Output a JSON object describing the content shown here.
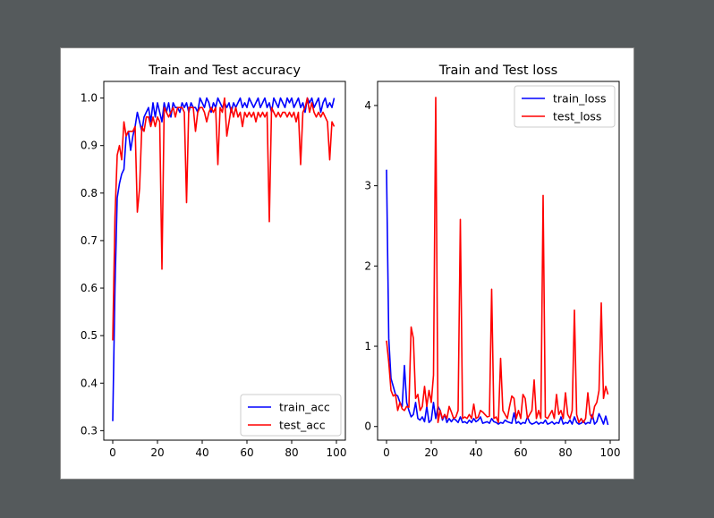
{
  "chart_data": [
    {
      "type": "line",
      "title": "Train and Test accuracy",
      "xlabel": "",
      "ylabel": "",
      "xlim": [
        -4,
        104
      ],
      "ylim": [
        0.28,
        1.035
      ],
      "xticks": [
        0,
        20,
        40,
        60,
        80,
        100
      ],
      "yticks": [
        0.3,
        0.4,
        0.5,
        0.6,
        0.7,
        0.8,
        0.9,
        1.0
      ],
      "ytick_labels": [
        "0.3",
        "0.4",
        "0.5",
        "0.6",
        "0.7",
        "0.8",
        "0.9",
        "1.0"
      ],
      "grid": false,
      "legend": "lower-right",
      "series": [
        {
          "name": "train_acc",
          "color": "#0000ff",
          "values": [
            0.32,
            0.6,
            0.79,
            0.82,
            0.84,
            0.85,
            0.92,
            0.93,
            0.89,
            0.92,
            0.94,
            0.97,
            0.95,
            0.93,
            0.96,
            0.97,
            0.98,
            0.95,
            0.99,
            0.96,
            0.99,
            0.97,
            0.95,
            0.99,
            0.97,
            0.99,
            0.96,
            0.99,
            0.98,
            0.98,
            0.97,
            0.99,
            0.98,
            0.99,
            0.97,
            0.99,
            0.98,
            0.98,
            0.97,
            1.0,
            0.99,
            0.98,
            1.0,
            0.99,
            0.97,
            0.99,
            0.98,
            1.0,
            0.99,
            0.98,
            0.99,
            0.98,
            0.99,
            0.97,
            0.99,
            0.98,
            0.99,
            1.0,
            0.98,
            0.99,
            0.98,
            1.0,
            0.99,
            0.98,
            0.99,
            1.0,
            0.98,
            0.99,
            1.0,
            0.98,
            0.99,
            0.97,
            1.0,
            0.99,
            0.98,
            1.0,
            0.99,
            0.98,
            1.0,
            0.99,
            1.0,
            0.98,
            0.99,
            1.0,
            0.98,
            0.99,
            0.97,
            1.0,
            0.99,
            1.0,
            0.98,
            0.99,
            1.0,
            0.97,
            0.99,
            1.0,
            0.98,
            0.99,
            0.98,
            1.0
          ]
        },
        {
          "name": "test_acc",
          "color": "#ff0000",
          "values": [
            0.49,
            0.75,
            0.88,
            0.9,
            0.87,
            0.95,
            0.92,
            0.93,
            0.93,
            0.93,
            0.94,
            0.76,
            0.81,
            0.94,
            0.93,
            0.96,
            0.96,
            0.94,
            0.96,
            0.94,
            0.96,
            0.95,
            0.64,
            0.98,
            0.97,
            0.96,
            0.97,
            0.98,
            0.96,
            0.98,
            0.98,
            0.98,
            0.97,
            0.78,
            0.98,
            0.98,
            0.98,
            0.93,
            0.97,
            0.98,
            0.98,
            0.97,
            0.95,
            0.97,
            0.98,
            0.97,
            0.98,
            0.86,
            0.98,
            0.97,
            1.0,
            0.92,
            0.95,
            0.98,
            0.96,
            0.98,
            0.96,
            0.97,
            0.94,
            0.97,
            0.96,
            0.97,
            0.96,
            0.97,
            0.95,
            0.97,
            0.96,
            0.97,
            0.96,
            0.97,
            0.74,
            0.98,
            0.97,
            0.96,
            0.97,
            0.96,
            0.97,
            0.97,
            0.96,
            0.97,
            0.96,
            0.97,
            0.95,
            0.97,
            0.86,
            0.97,
            0.98,
            1.0,
            0.97,
            0.99,
            0.97,
            0.96,
            0.97,
            0.96,
            0.97,
            0.96,
            0.95,
            0.87,
            0.95,
            0.94
          ]
        }
      ]
    },
    {
      "type": "line",
      "title": "Train and Test loss",
      "xlabel": "",
      "ylabel": "",
      "xlim": [
        -4,
        104
      ],
      "ylim": [
        -0.17,
        4.3
      ],
      "xticks": [
        0,
        20,
        40,
        60,
        80,
        100
      ],
      "yticks": [
        0,
        1,
        2,
        3,
        4
      ],
      "ytick_labels": [
        "0",
        "1",
        "2",
        "3",
        "4"
      ],
      "grid": false,
      "legend": "upper-right",
      "series": [
        {
          "name": "train_loss",
          "color": "#0000ff",
          "values": [
            3.2,
            1.1,
            0.6,
            0.5,
            0.4,
            0.38,
            0.3,
            0.25,
            0.76,
            0.3,
            0.2,
            0.12,
            0.15,
            0.3,
            0.1,
            0.08,
            0.12,
            0.06,
            0.25,
            0.05,
            0.08,
            0.3,
            0.1,
            0.25,
            0.2,
            0.08,
            0.15,
            0.05,
            0.1,
            0.06,
            0.1,
            0.08,
            0.05,
            0.12,
            0.05,
            0.06,
            0.04,
            0.08,
            0.05,
            0.1,
            0.06,
            0.08,
            0.12,
            0.04,
            0.05,
            0.06,
            0.04,
            0.1,
            0.06,
            0.05,
            0.03,
            0.05,
            0.04,
            0.08,
            0.06,
            0.05,
            0.04,
            0.17,
            0.04,
            0.06,
            0.03,
            0.05,
            0.04,
            0.12,
            0.05,
            0.03,
            0.04,
            0.06,
            0.03,
            0.05,
            0.04,
            0.08,
            0.03,
            0.04,
            0.06,
            0.03,
            0.05,
            0.04,
            0.12,
            0.03,
            0.05,
            0.04,
            0.08,
            0.03,
            0.12,
            0.05,
            0.03,
            0.04,
            0.07,
            0.03,
            0.05,
            0.04,
            0.15,
            0.03,
            0.06,
            0.16,
            0.1,
            0.03,
            0.13,
            0.02
          ]
        },
        {
          "name": "test_loss",
          "color": "#ff0000",
          "values": [
            1.07,
            0.8,
            0.45,
            0.38,
            0.4,
            0.2,
            0.3,
            0.22,
            0.2,
            0.25,
            0.24,
            1.24,
            1.1,
            0.35,
            0.4,
            0.2,
            0.25,
            0.5,
            0.25,
            0.45,
            0.3,
            0.64,
            4.1,
            0.05,
            0.2,
            0.1,
            0.15,
            0.1,
            0.25,
            0.18,
            0.1,
            0.12,
            0.2,
            2.58,
            0.1,
            0.12,
            0.1,
            0.15,
            0.1,
            0.28,
            0.1,
            0.12,
            0.2,
            0.18,
            0.15,
            0.12,
            0.13,
            1.71,
            0.1,
            0.12,
            0.05,
            0.85,
            0.2,
            0.15,
            0.1,
            0.25,
            0.38,
            0.35,
            0.1,
            0.2,
            0.1,
            0.4,
            0.35,
            0.1,
            0.15,
            0.2,
            0.58,
            0.1,
            0.2,
            0.1,
            2.88,
            0.12,
            0.1,
            0.15,
            0.2,
            0.1,
            0.4,
            0.15,
            0.2,
            0.1,
            0.42,
            0.15,
            0.1,
            0.2,
            1.45,
            0.15,
            0.05,
            0.1,
            0.05,
            0.1,
            0.42,
            0.15,
            0.1,
            0.25,
            0.3,
            0.45,
            1.54,
            0.35,
            0.5,
            0.4
          ]
        }
      ]
    }
  ]
}
